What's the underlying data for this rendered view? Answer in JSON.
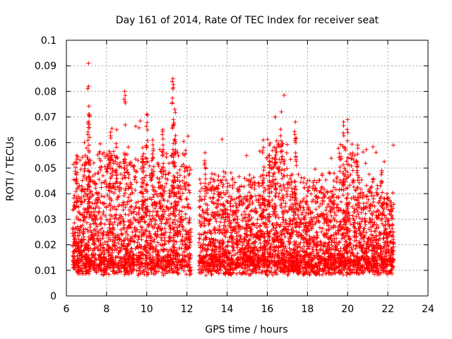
{
  "chart_data": {
    "type": "scatter",
    "title": "Day 161 of 2014, Rate Of TEC Index for receiver seat",
    "xlabel": "GPS time / hours",
    "ylabel": "ROTI / TECUs",
    "xlim": [
      6,
      24
    ],
    "ylim": [
      0,
      0.1
    ],
    "xticks": [
      "6",
      "8",
      "10",
      "12",
      "14",
      "16",
      "18",
      "20",
      "22",
      "24"
    ],
    "yticks": [
      "0",
      "0.01",
      "0.02",
      "0.03",
      "0.04",
      "0.05",
      "0.06",
      "0.07",
      "0.08",
      "0.09",
      "0.1"
    ],
    "grid": true,
    "marker": "+",
    "color": "#ff0000",
    "series": [
      {
        "name": "ROTI",
        "x_range": [
          6.3,
          22.3
        ],
        "gap": [
          12.2,
          12.6
        ],
        "typical_range": [
          0.005,
          0.03
        ],
        "peaks": [
          {
            "x": 7.1,
            "y": 0.091
          },
          {
            "x": 7.1,
            "y": 0.082
          },
          {
            "x": 7.15,
            "y": 0.071
          },
          {
            "x": 8.9,
            "y": 0.08
          },
          {
            "x": 10.0,
            "y": 0.071
          },
          {
            "x": 11.3,
            "y": 0.085
          },
          {
            "x": 11.3,
            "y": 0.081
          },
          {
            "x": 11.4,
            "y": 0.073
          },
          {
            "x": 16.4,
            "y": 0.07
          },
          {
            "x": 16.7,
            "y": 0.072
          },
          {
            "x": 17.4,
            "y": 0.068
          },
          {
            "x": 19.8,
            "y": 0.068
          },
          {
            "x": 20.0,
            "y": 0.069
          },
          {
            "x": 6.5,
            "y": 0.052
          },
          {
            "x": 6.9,
            "y": 0.06
          },
          {
            "x": 8.2,
            "y": 0.064
          },
          {
            "x": 8.5,
            "y": 0.065
          },
          {
            "x": 9.8,
            "y": 0.058
          },
          {
            "x": 10.3,
            "y": 0.061
          },
          {
            "x": 10.8,
            "y": 0.065
          },
          {
            "x": 12.9,
            "y": 0.056
          },
          {
            "x": 15.8,
            "y": 0.061
          },
          {
            "x": 16.1,
            "y": 0.059
          },
          {
            "x": 20.5,
            "y": 0.059
          },
          {
            "x": 21.7,
            "y": 0.049
          }
        ]
      }
    ]
  }
}
